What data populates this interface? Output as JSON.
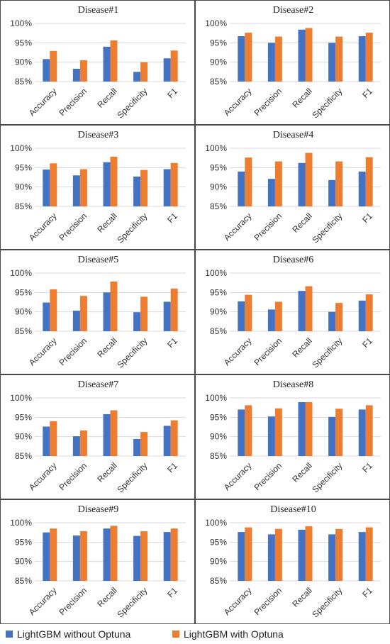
{
  "chart_data": [
    {
      "type": "bar",
      "title": "Disease#1",
      "categories": [
        "Accuracy",
        "Precision",
        "Recall",
        "Specificity",
        "F1"
      ],
      "ylim": [
        85,
        100
      ],
      "yticks": [
        "85%",
        "90%",
        "95%",
        "100%"
      ],
      "ytick_values": [
        85,
        90,
        95,
        100
      ],
      "grid": true,
      "series": [
        {
          "name": "LightGBM without Optuna",
          "values": [
            90.8,
            88.3,
            94.0,
            87.5,
            91.0
          ]
        },
        {
          "name": "LightGBM with Optuna",
          "values": [
            92.9,
            90.5,
            95.6,
            90.0,
            93.0
          ]
        }
      ]
    },
    {
      "type": "bar",
      "title": "Disease#2",
      "categories": [
        "Accuracy",
        "Precision",
        "Recall",
        "Specificity",
        "F1"
      ],
      "ylim": [
        85,
        100
      ],
      "yticks": [
        "85%",
        "90%",
        "95%",
        "100%"
      ],
      "ytick_values": [
        85,
        90,
        95,
        100
      ],
      "grid": true,
      "series": [
        {
          "name": "LightGBM without Optuna",
          "values": [
            96.7,
            95.0,
            98.4,
            95.0,
            96.7
          ]
        },
        {
          "name": "LightGBM with Optuna",
          "values": [
            97.6,
            96.6,
            98.8,
            96.6,
            97.6
          ]
        }
      ]
    },
    {
      "type": "bar",
      "title": "Disease#3",
      "categories": [
        "Accuracy",
        "Precision",
        "Recall",
        "Specificity",
        "F1"
      ],
      "ylim": [
        85,
        100
      ],
      "yticks": [
        "85%",
        "90%",
        "95%",
        "100%"
      ],
      "ytick_values": [
        85,
        90,
        95,
        100
      ],
      "grid": true,
      "series": [
        {
          "name": "LightGBM without Optuna",
          "values": [
            94.5,
            93.0,
            96.4,
            92.7,
            94.6
          ]
        },
        {
          "name": "LightGBM with Optuna",
          "values": [
            96.1,
            94.6,
            97.8,
            94.4,
            96.2
          ]
        }
      ]
    },
    {
      "type": "bar",
      "title": "Disease#4",
      "categories": [
        "Accuracy",
        "Precision",
        "Recall",
        "Specificity",
        "F1"
      ],
      "ylim": [
        85,
        100
      ],
      "yticks": [
        "85%",
        "90%",
        "95%",
        "100%"
      ],
      "ytick_values": [
        85,
        90,
        95,
        100
      ],
      "grid": true,
      "series": [
        {
          "name": "LightGBM without Optuna",
          "values": [
            94.0,
            92.1,
            96.2,
            91.8,
            94.0
          ]
        },
        {
          "name": "LightGBM with Optuna",
          "values": [
            97.6,
            96.6,
            98.8,
            96.6,
            97.7
          ]
        }
      ]
    },
    {
      "type": "bar",
      "title": "Disease#5",
      "categories": [
        "Accuracy",
        "Precision",
        "Recall",
        "Specificity",
        "F1"
      ],
      "ylim": [
        85,
        100
      ],
      "yticks": [
        "85%",
        "90%",
        "95%",
        "100%"
      ],
      "ytick_values": [
        85,
        90,
        95,
        100
      ],
      "grid": true,
      "series": [
        {
          "name": "LightGBM without Optuna",
          "values": [
            92.4,
            90.3,
            95.0,
            89.9,
            92.6
          ]
        },
        {
          "name": "LightGBM with Optuna",
          "values": [
            95.8,
            94.1,
            97.8,
            93.9,
            96.0
          ]
        }
      ]
    },
    {
      "type": "bar",
      "title": "Disease#6",
      "categories": [
        "Accuracy",
        "Precision",
        "Recall",
        "Specificity",
        "F1"
      ],
      "ylim": [
        85,
        100
      ],
      "yticks": [
        "85%",
        "90%",
        "95%",
        "100%"
      ],
      "ytick_values": [
        85,
        90,
        95,
        100
      ],
      "grid": true,
      "series": [
        {
          "name": "LightGBM without Optuna",
          "values": [
            92.7,
            90.6,
            95.4,
            90.0,
            92.9
          ]
        },
        {
          "name": "LightGBM with Optuna",
          "values": [
            94.4,
            92.6,
            96.6,
            92.3,
            94.5
          ]
        }
      ]
    },
    {
      "type": "bar",
      "title": "Disease#7",
      "categories": [
        "Accuracy",
        "Precision",
        "Recall",
        "Specificity",
        "F1"
      ],
      "ylim": [
        85,
        100
      ],
      "yticks": [
        "85%",
        "90%",
        "95%",
        "100%"
      ],
      "ytick_values": [
        85,
        90,
        95,
        100
      ],
      "grid": true,
      "series": [
        {
          "name": "LightGBM without Optuna",
          "values": [
            92.6,
            90.1,
            95.8,
            89.4,
            92.8
          ]
        },
        {
          "name": "LightGBM with Optuna",
          "values": [
            94.0,
            91.6,
            96.8,
            91.2,
            94.2
          ]
        }
      ]
    },
    {
      "type": "bar",
      "title": "Disease#8",
      "categories": [
        "Accuracy",
        "Precision",
        "Recall",
        "Specificity",
        "F1"
      ],
      "ylim": [
        85,
        100
      ],
      "yticks": [
        "85%",
        "90%",
        "95%",
        "100%"
      ],
      "ytick_values": [
        85,
        90,
        95,
        100
      ],
      "grid": true,
      "series": [
        {
          "name": "LightGBM without Optuna",
          "values": [
            97.0,
            95.2,
            98.9,
            95.1,
            97.0
          ]
        },
        {
          "name": "LightGBM with Optuna",
          "values": [
            98.1,
            97.3,
            98.9,
            97.2,
            98.1
          ]
        }
      ]
    },
    {
      "type": "bar",
      "title": "Disease#9",
      "categories": [
        "Accuracy",
        "Precision",
        "Recall",
        "Specificity",
        "F1"
      ],
      "ylim": [
        85,
        100
      ],
      "yticks": [
        "85%",
        "90%",
        "95%",
        "100%"
      ],
      "ytick_values": [
        85,
        90,
        95,
        100
      ],
      "grid": true,
      "series": [
        {
          "name": "LightGBM without Optuna",
          "values": [
            97.5,
            96.7,
            98.5,
            96.6,
            97.6
          ]
        },
        {
          "name": "LightGBM with Optuna",
          "values": [
            98.5,
            97.8,
            99.2,
            97.8,
            98.5
          ]
        }
      ]
    },
    {
      "type": "bar",
      "title": "Disease#10",
      "categories": [
        "Accuracy",
        "Precision",
        "Recall",
        "Specificity",
        "F1"
      ],
      "ylim": [
        85,
        100
      ],
      "yticks": [
        "85%",
        "90%",
        "95%",
        "100%"
      ],
      "ytick_values": [
        85,
        90,
        95,
        100
      ],
      "grid": true,
      "series": [
        {
          "name": "LightGBM without Optuna",
          "values": [
            97.6,
            97.0,
            98.2,
            97.0,
            97.6
          ]
        },
        {
          "name": "LightGBM with Optuna",
          "values": [
            98.8,
            98.4,
            99.1,
            98.4,
            98.8
          ]
        }
      ]
    }
  ],
  "colors": {
    "series_1": "#4472C4",
    "series_2": "#ED7D31",
    "gridline": "#d9d9d9",
    "border": "#4a4a4a"
  },
  "legend": {
    "placement": "bottom",
    "items": [
      {
        "label": "LightGBM without Optuna",
        "color": "#4472C4"
      },
      {
        "label": "LightGBM with Optuna",
        "color": "#ED7D31"
      }
    ]
  }
}
